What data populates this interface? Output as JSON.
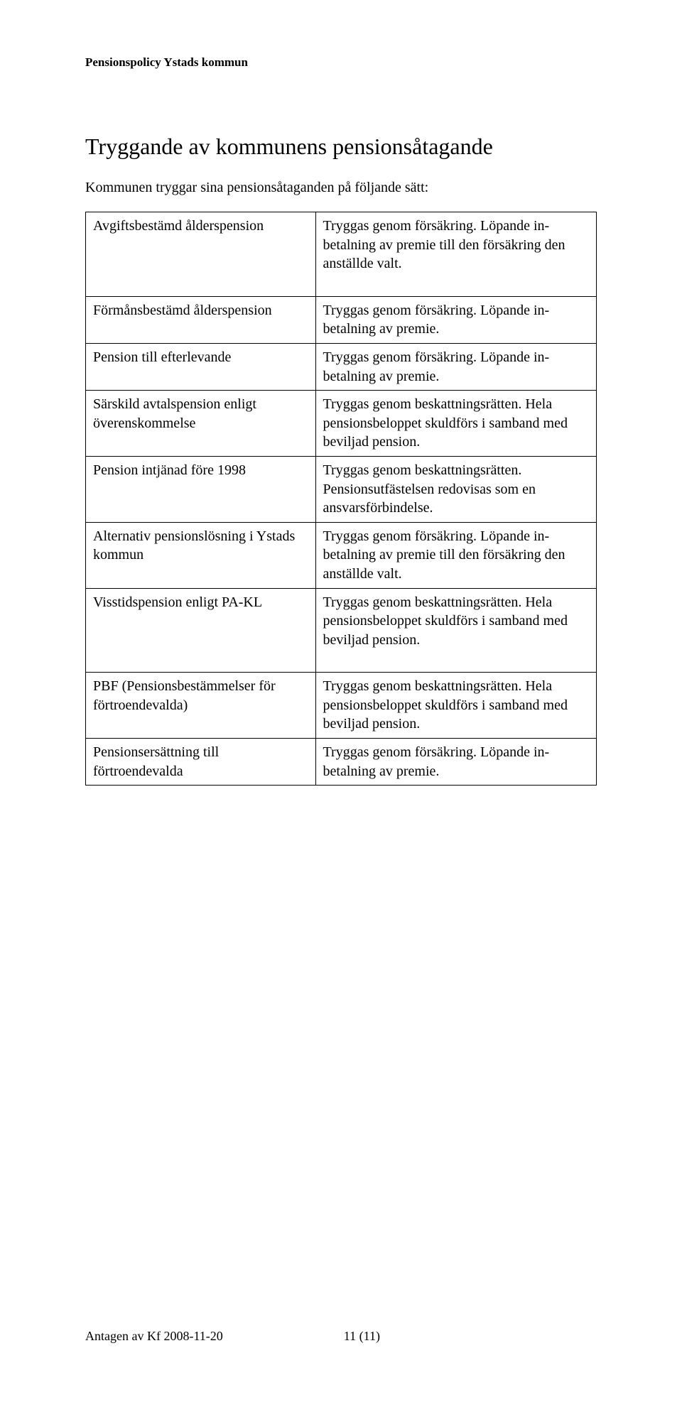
{
  "header": "Pensionspolicy Ystads kommun",
  "title": "Tryggande av kommunens pensionsåtagande",
  "intro": "Kommunen tryggar sina pensionsåtaganden på följande sätt:",
  "rows": [
    {
      "left": "Avgiftsbestämd ålderspension",
      "right": "Tryggas genom försäkring. Löpande in-betalning av premie till den försäkring den anställde valt."
    },
    {
      "left": "Förmånsbestämd ålderspension",
      "right": "Tryggas genom försäkring. Löpande in-betalning av premie."
    },
    {
      "left": "Pension till efterlevande",
      "right": "Tryggas genom försäkring. Löpande in-betalning av premie."
    },
    {
      "left": "Särskild avtalspension enligt överenskommelse",
      "right": "Tryggas genom beskattningsrätten. Hela pensionsbeloppet skuldförs i samband med beviljad pension."
    },
    {
      "left": "Pension intjänad före 1998",
      "right": "Tryggas genom beskattningsrätten. Pensionsutfästelsen redovisas som en ansvarsförbindelse."
    },
    {
      "left": "Alternativ pensionslösning i Ystads kommun",
      "right": "Tryggas genom försäkring. Löpande in-betalning av premie till den försäkring den anställde valt."
    },
    {
      "left": "Visstidspension enligt PA-KL",
      "right": "Tryggas genom beskattningsrätten. Hela pensionsbeloppet skuldförs i samband med beviljad pension."
    },
    {
      "left": "PBF (Pensionsbestämmelser för förtroendevalda)",
      "right": "Tryggas genom beskattningsrätten. Hela pensionsbeloppet skuldförs i samband med beviljad pension."
    },
    {
      "left": "Pensionsersättning till förtroendevalda",
      "right": "Tryggas genom försäkring. Löpande in-betalning av premie."
    }
  ],
  "footer": {
    "left": "Antagen av Kf 2008-11-20",
    "right": "11 (11)"
  }
}
